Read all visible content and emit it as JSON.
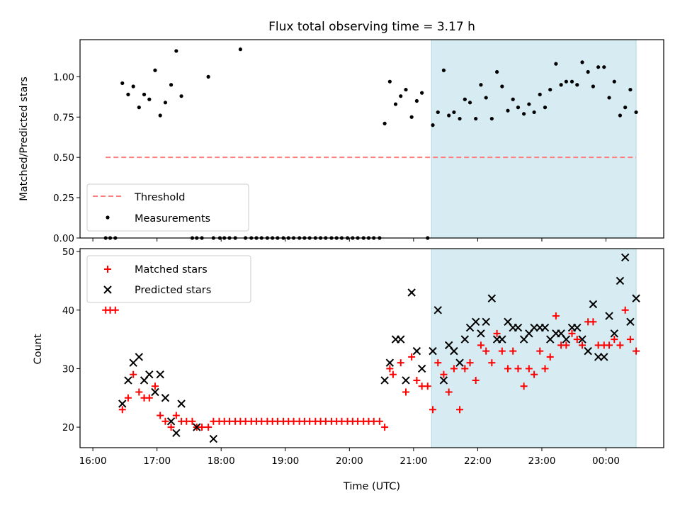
{
  "chart_data": [
    {
      "type": "scatter",
      "title": "Flux total observing time = 3.17 h",
      "xlabel": "",
      "ylabel": "Matched/Predicted stars",
      "ylim": [
        0,
        1.23
      ],
      "yticks": [
        "0.00",
        "0.25",
        "0.50",
        "0.75",
        "1.00"
      ],
      "ytick_values": [
        0,
        0.25,
        0.5,
        0.75,
        1.0
      ],
      "shaded_region": {
        "from_hour": 21.28,
        "to_hour": 24.47,
        "color": "#add8e6"
      },
      "legend": {
        "placement": "lower-left",
        "entries": [
          "Threshold",
          "Measurements"
        ]
      },
      "threshold": {
        "label": "Threshold",
        "value": 0.5,
        "from_hour": 16.2,
        "to_hour": 24.47,
        "color": "#ff7f7f"
      },
      "series": [
        {
          "name": "Measurements",
          "color": "#000000",
          "x_hours": [
            16.2,
            16.27,
            16.35,
            16.46,
            16.55,
            16.63,
            16.72,
            16.8,
            16.88,
            16.97,
            17.05,
            17.13,
            17.22,
            17.3,
            17.38,
            17.55,
            17.62,
            17.7,
            17.8,
            17.88,
            17.98,
            18.05,
            18.13,
            18.22,
            18.3,
            18.38,
            18.47,
            18.55,
            18.63,
            18.72,
            18.8,
            18.88,
            18.97,
            19.05,
            19.13,
            19.22,
            19.3,
            19.38,
            19.47,
            19.55,
            19.63,
            19.72,
            19.8,
            19.88,
            19.97,
            20.05,
            20.13,
            20.22,
            20.3,
            20.38,
            20.47,
            20.55,
            20.63,
            20.72,
            20.8,
            20.88,
            20.97,
            21.05,
            21.13,
            21.22,
            21.3,
            21.38,
            21.47,
            21.55,
            21.63,
            21.72,
            21.8,
            21.88,
            21.97,
            22.05,
            22.13,
            22.22,
            22.3,
            22.38,
            22.47,
            22.55,
            22.63,
            22.72,
            22.8,
            22.88,
            22.97,
            23.05,
            23.13,
            23.22,
            23.3,
            23.38,
            23.47,
            23.55,
            23.63,
            23.72,
            23.8,
            23.88,
            23.97,
            24.05,
            24.13,
            24.22,
            24.3,
            24.38,
            24.47
          ],
          "values": [
            0,
            0,
            0,
            0.96,
            0.89,
            0.94,
            0.81,
            0.89,
            0.86,
            1.04,
            0.76,
            0.84,
            0.95,
            1.16,
            0.88,
            0,
            0,
            0,
            1.0,
            0,
            0,
            0,
            0,
            0,
            1.17,
            0,
            0,
            0,
            0,
            0,
            0,
            0,
            0,
            0,
            0,
            0,
            0,
            0,
            0,
            0,
            0,
            0,
            0,
            0,
            0,
            0,
            0,
            0,
            0,
            0,
            0,
            0.71,
            0.97,
            0.83,
            0.88,
            0.92,
            0.75,
            0.85,
            0.9,
            0,
            0.7,
            0.78,
            1.04,
            0.76,
            0.78,
            0.74,
            0.86,
            0.84,
            0.74,
            0.95,
            0.87,
            0.74,
            1.03,
            0.94,
            0.79,
            0.86,
            0.81,
            0.77,
            0.83,
            0.78,
            0.89,
            0.81,
            0.92,
            1.08,
            0.95,
            0.97,
            0.97,
            0.95,
            1.09,
            1.03,
            0.94,
            1.06,
            1.06,
            0.87,
            0.97,
            0.76,
            0.81,
            0.92,
            0.78
          ]
        }
      ]
    },
    {
      "type": "scatter",
      "title": "",
      "xlabel": "Time (UTC)",
      "ylabel": "Count",
      "ylim": [
        16.5,
        50.5
      ],
      "yticks": [
        "20",
        "30",
        "40",
        "50"
      ],
      "ytick_values": [
        20,
        30,
        40,
        50
      ],
      "xticks": [
        "16:00",
        "17:00",
        "18:00",
        "19:00",
        "20:00",
        "21:00",
        "22:00",
        "23:00",
        "00:00"
      ],
      "xtick_hours": [
        16,
        17,
        18,
        19,
        20,
        21,
        22,
        23,
        24
      ],
      "xlim_hours": [
        15.8,
        24.9
      ],
      "shaded_region": {
        "from_hour": 21.28,
        "to_hour": 24.47,
        "color": "#add8e6"
      },
      "legend": {
        "placement": "upper-left",
        "entries": [
          "Matched stars",
          "Predicted stars"
        ]
      },
      "series": [
        {
          "name": "Matched stars",
          "marker": "+",
          "color": "#ff0000",
          "points": [
            [
              16.2,
              40
            ],
            [
              16.27,
              40
            ],
            [
              16.35,
              40
            ],
            [
              16.46,
              23
            ],
            [
              16.55,
              25
            ],
            [
              16.63,
              29
            ],
            [
              16.72,
              26
            ],
            [
              16.8,
              25
            ],
            [
              16.88,
              25
            ],
            [
              16.97,
              27
            ],
            [
              17.05,
              22
            ],
            [
              17.13,
              21
            ],
            [
              17.22,
              20
            ],
            [
              17.3,
              22
            ],
            [
              17.38,
              21
            ],
            [
              17.46,
              21
            ],
            [
              17.55,
              21
            ],
            [
              17.62,
              20
            ],
            [
              17.7,
              20
            ],
            [
              17.8,
              20
            ],
            [
              17.88,
              21
            ],
            [
              17.97,
              21
            ],
            [
              18.05,
              21
            ],
            [
              18.13,
              21
            ],
            [
              18.22,
              21
            ],
            [
              18.3,
              21
            ],
            [
              18.38,
              21
            ],
            [
              18.47,
              21
            ],
            [
              18.55,
              21
            ],
            [
              18.63,
              21
            ],
            [
              18.72,
              21
            ],
            [
              18.8,
              21
            ],
            [
              18.88,
              21
            ],
            [
              18.97,
              21
            ],
            [
              19.05,
              21
            ],
            [
              19.13,
              21
            ],
            [
              19.22,
              21
            ],
            [
              19.3,
              21
            ],
            [
              19.38,
              21
            ],
            [
              19.47,
              21
            ],
            [
              19.55,
              21
            ],
            [
              19.63,
              21
            ],
            [
              19.72,
              21
            ],
            [
              19.8,
              21
            ],
            [
              19.88,
              21
            ],
            [
              19.97,
              21
            ],
            [
              20.05,
              21
            ],
            [
              20.13,
              21
            ],
            [
              20.22,
              21
            ],
            [
              20.3,
              21
            ],
            [
              20.38,
              21
            ],
            [
              20.47,
              21
            ],
            [
              20.55,
              20
            ],
            [
              20.63,
              30
            ],
            [
              20.68,
              29
            ],
            [
              20.8,
              31
            ],
            [
              20.88,
              26
            ],
            [
              20.97,
              32
            ],
            [
              21.05,
              28
            ],
            [
              21.13,
              27
            ],
            [
              21.22,
              27
            ],
            [
              21.3,
              23
            ],
            [
              21.38,
              31
            ],
            [
              21.47,
              29
            ],
            [
              21.55,
              26
            ],
            [
              21.63,
              30
            ],
            [
              21.72,
              23
            ],
            [
              21.8,
              30
            ],
            [
              21.88,
              31
            ],
            [
              21.97,
              28
            ],
            [
              22.05,
              34
            ],
            [
              22.13,
              33
            ],
            [
              22.22,
              31
            ],
            [
              22.3,
              36
            ],
            [
              22.38,
              33
            ],
            [
              22.47,
              30
            ],
            [
              22.55,
              33
            ],
            [
              22.63,
              30
            ],
            [
              22.72,
              27
            ],
            [
              22.8,
              30
            ],
            [
              22.88,
              29
            ],
            [
              22.97,
              33
            ],
            [
              23.05,
              30
            ],
            [
              23.13,
              32
            ],
            [
              23.22,
              39
            ],
            [
              23.3,
              34
            ],
            [
              23.38,
              34
            ],
            [
              23.47,
              36
            ],
            [
              23.55,
              35
            ],
            [
              23.63,
              34
            ],
            [
              23.72,
              38
            ],
            [
              23.8,
              38
            ],
            [
              23.88,
              34
            ],
            [
              23.97,
              34
            ],
            [
              24.05,
              34
            ],
            [
              24.13,
              35
            ],
            [
              24.22,
              34
            ],
            [
              24.3,
              40
            ],
            [
              24.38,
              35
            ],
            [
              24.47,
              33
            ]
          ]
        },
        {
          "name": "Predicted stars",
          "marker": "x",
          "color": "#000000",
          "points": [
            [
              16.46,
              24
            ],
            [
              16.55,
              28
            ],
            [
              16.63,
              31
            ],
            [
              16.72,
              32
            ],
            [
              16.8,
              28
            ],
            [
              16.88,
              29
            ],
            [
              16.97,
              26
            ],
            [
              17.05,
              29
            ],
            [
              17.13,
              25
            ],
            [
              17.22,
              21
            ],
            [
              17.3,
              19
            ],
            [
              17.38,
              24
            ],
            [
              17.62,
              20
            ],
            [
              17.88,
              18
            ],
            [
              20.55,
              28
            ],
            [
              20.63,
              31
            ],
            [
              20.72,
              35
            ],
            [
              20.8,
              35
            ],
            [
              20.88,
              28
            ],
            [
              20.97,
              43
            ],
            [
              21.05,
              33
            ],
            [
              21.13,
              30
            ],
            [
              21.3,
              33
            ],
            [
              21.38,
              40
            ],
            [
              21.47,
              28
            ],
            [
              21.55,
              34
            ],
            [
              21.63,
              33
            ],
            [
              21.72,
              31
            ],
            [
              21.8,
              35
            ],
            [
              21.88,
              37
            ],
            [
              21.97,
              38
            ],
            [
              22.05,
              36
            ],
            [
              22.13,
              38
            ],
            [
              22.22,
              42
            ],
            [
              22.3,
              35
            ],
            [
              22.38,
              35
            ],
            [
              22.47,
              38
            ],
            [
              22.55,
              37
            ],
            [
              22.63,
              37
            ],
            [
              22.72,
              35
            ],
            [
              22.8,
              36
            ],
            [
              22.88,
              37
            ],
            [
              22.97,
              37
            ],
            [
              23.05,
              37
            ],
            [
              23.13,
              35
            ],
            [
              23.22,
              36
            ],
            [
              23.3,
              36
            ],
            [
              23.38,
              35
            ],
            [
              23.47,
              37
            ],
            [
              23.55,
              37
            ],
            [
              23.63,
              35
            ],
            [
              23.72,
              33
            ],
            [
              23.8,
              41
            ],
            [
              23.88,
              32
            ],
            [
              23.97,
              32
            ],
            [
              24.05,
              39
            ],
            [
              24.13,
              36
            ],
            [
              24.22,
              45
            ],
            [
              24.3,
              49
            ],
            [
              24.38,
              38
            ],
            [
              24.47,
              42
            ]
          ]
        }
      ]
    }
  ]
}
